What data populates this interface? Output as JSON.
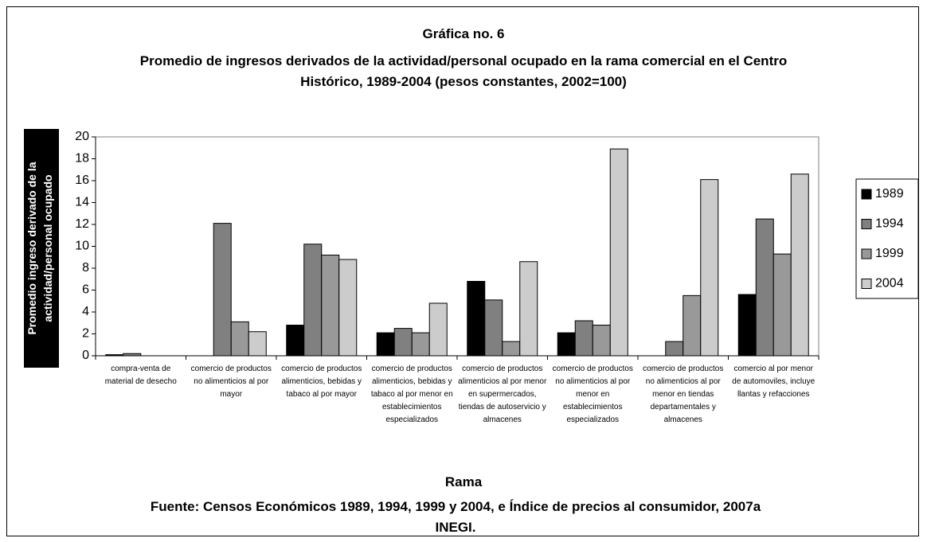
{
  "chart_data": {
    "type": "bar",
    "title": "Gráfica no. 6",
    "subtitle": "Promedio de ingresos derivados de la actividad/personal ocupado en la rama comercial en el Centro Histórico, 1989-2004 (pesos constantes, 2002=100)",
    "y_label": "Promedio ingreso derivado de la actividad/personal ocupado",
    "x_label": "Rama",
    "source": "Fuente: Censos Económicos 1989, 1994, 1999 y 2004, e Índice de precios al consumidor, 2007a INEGI.",
    "categories": [
      "compra-venta de material de desecho",
      "comercio de productos no alimenticios al por mayor",
      "comercio de productos alimenticios, bebidas y tabaco al por mayor",
      "comercio de productos alimenticios, bebidas y tabaco al por menor en establecimientos especializados",
      "comercio de productos alimenticios al por menor en supermercados, tiendas de autoservicio y almacenes",
      "comercio de productos no alimenticios al por menor en establecimientos especializados",
      "comercio de productos no alimenticios al por menor en tiendas departamentales y almacenes",
      "comercio al por menor de automoviles, incluye llantas y refacciones"
    ],
    "series": [
      {
        "name": "1989",
        "color": "#000000",
        "values": [
          0.1,
          0,
          2.8,
          2.1,
          6.8,
          2.1,
          0,
          5.6
        ]
      },
      {
        "name": "1994",
        "color": "#808080",
        "values": [
          0.2,
          12.1,
          10.2,
          2.5,
          5.1,
          3.2,
          1.3,
          12.5
        ]
      },
      {
        "name": "1999",
        "color": "#999999",
        "values": [
          0,
          3.1,
          9.2,
          2.1,
          1.3,
          2.8,
          5.5,
          9.3
        ]
      },
      {
        "name": "2004",
        "color": "#cccccc",
        "values": [
          0,
          2.2,
          8.8,
          4.8,
          8.6,
          18.9,
          16.1,
          16.6
        ]
      }
    ],
    "ylim": [
      0,
      20
    ],
    "yticks": [
      0,
      2,
      4,
      6,
      8,
      10,
      12,
      14,
      16,
      18,
      20
    ],
    "legend": "right"
  }
}
